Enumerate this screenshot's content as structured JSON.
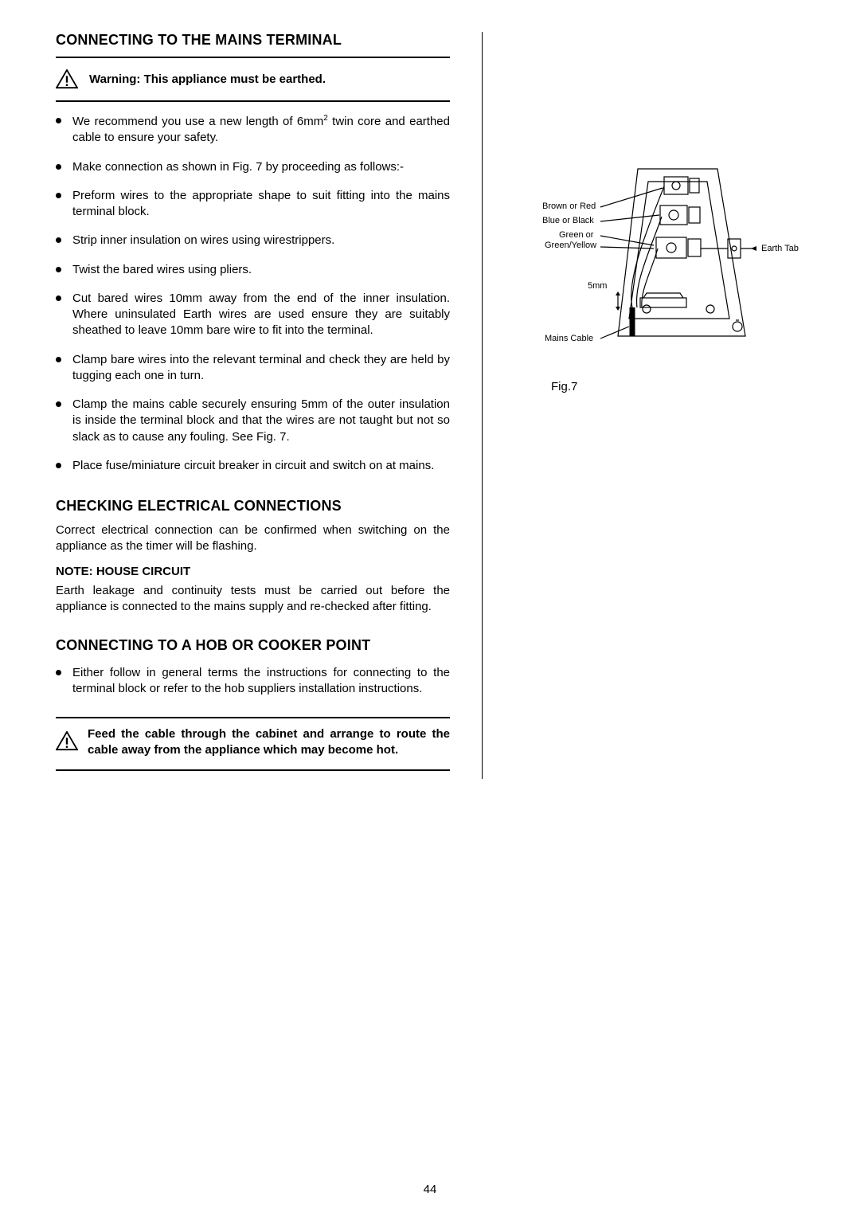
{
  "page": {
    "number": "44"
  },
  "sections": {
    "connecting_mains": {
      "heading": "CONNECTING TO THE MAINS TERMINAL",
      "warning_label": "Warning:  This appliance must be earthed.",
      "bullets": [
        {
          "pre": "We recommend you use a new length of 6mm",
          "sup": "2",
          "post": " twin core and earthed cable to ensure your safety."
        },
        {
          "pre": "Make connection as shown in Fig. 7 by proceeding as follows:-",
          "sup": "",
          "post": ""
        },
        {
          "pre": "Preform wires to the appropriate shape to suit fitting into the mains terminal block.",
          "sup": "",
          "post": ""
        },
        {
          "pre": "Strip inner insulation on wires using wirestrippers.",
          "sup": "",
          "post": ""
        },
        {
          "pre": "Twist the bared wires using pliers.",
          "sup": "",
          "post": ""
        },
        {
          "pre": "Cut bared wires 10mm away from the end of the inner insulation.  Where uninsulated Earth wires are used ensure they are suitably sheathed to leave 10mm bare wire to fit into the terminal.",
          "sup": "",
          "post": ""
        },
        {
          "pre": "Clamp bare wires into the relevant terminal and check they are held by tugging each one in turn.",
          "sup": "",
          "post": ""
        },
        {
          "pre": "Clamp the mains cable securely ensuring 5mm of the outer insulation is inside the terminal block and that the wires are not taught but not so slack as to cause any fouling.  See Fig. 7.",
          "sup": "",
          "post": ""
        },
        {
          "pre": "Place fuse/miniature circuit breaker in circuit and switch on at mains.",
          "sup": "",
          "post": ""
        }
      ]
    },
    "checking": {
      "heading": "CHECKING ELECTRICAL CONNECTIONS",
      "para": "Correct electrical connection can be confirmed when switching on the appliance as the timer will be flashing.",
      "note_head": "NOTE: HOUSE CIRCUIT",
      "note_body": "Earth leakage and continuity tests must be carried out before the appliance is connected to the mains supply and re-checked after fitting."
    },
    "hob": {
      "heading": "CONNECTING TO A HOB OR COOKER POINT",
      "bullet": "Either follow in general terms the instructions for connecting to the terminal block or refer to the hob suppliers installation instructions.",
      "feed": "Feed the cable through the cabinet and arrange to route the cable away from the appliance which may become hot."
    }
  },
  "diagram": {
    "caption": "Fig.7",
    "labels": {
      "brown": "Brown or Red",
      "blue": "Blue or Black",
      "green": "Green or",
      "greenyellow": "Green/Yellow",
      "fivemm": "5mm",
      "mains": "Mains Cable",
      "earthtab": "Earth Tab"
    },
    "colors": {
      "stroke": "#000000",
      "fill": "#ffffff"
    }
  }
}
